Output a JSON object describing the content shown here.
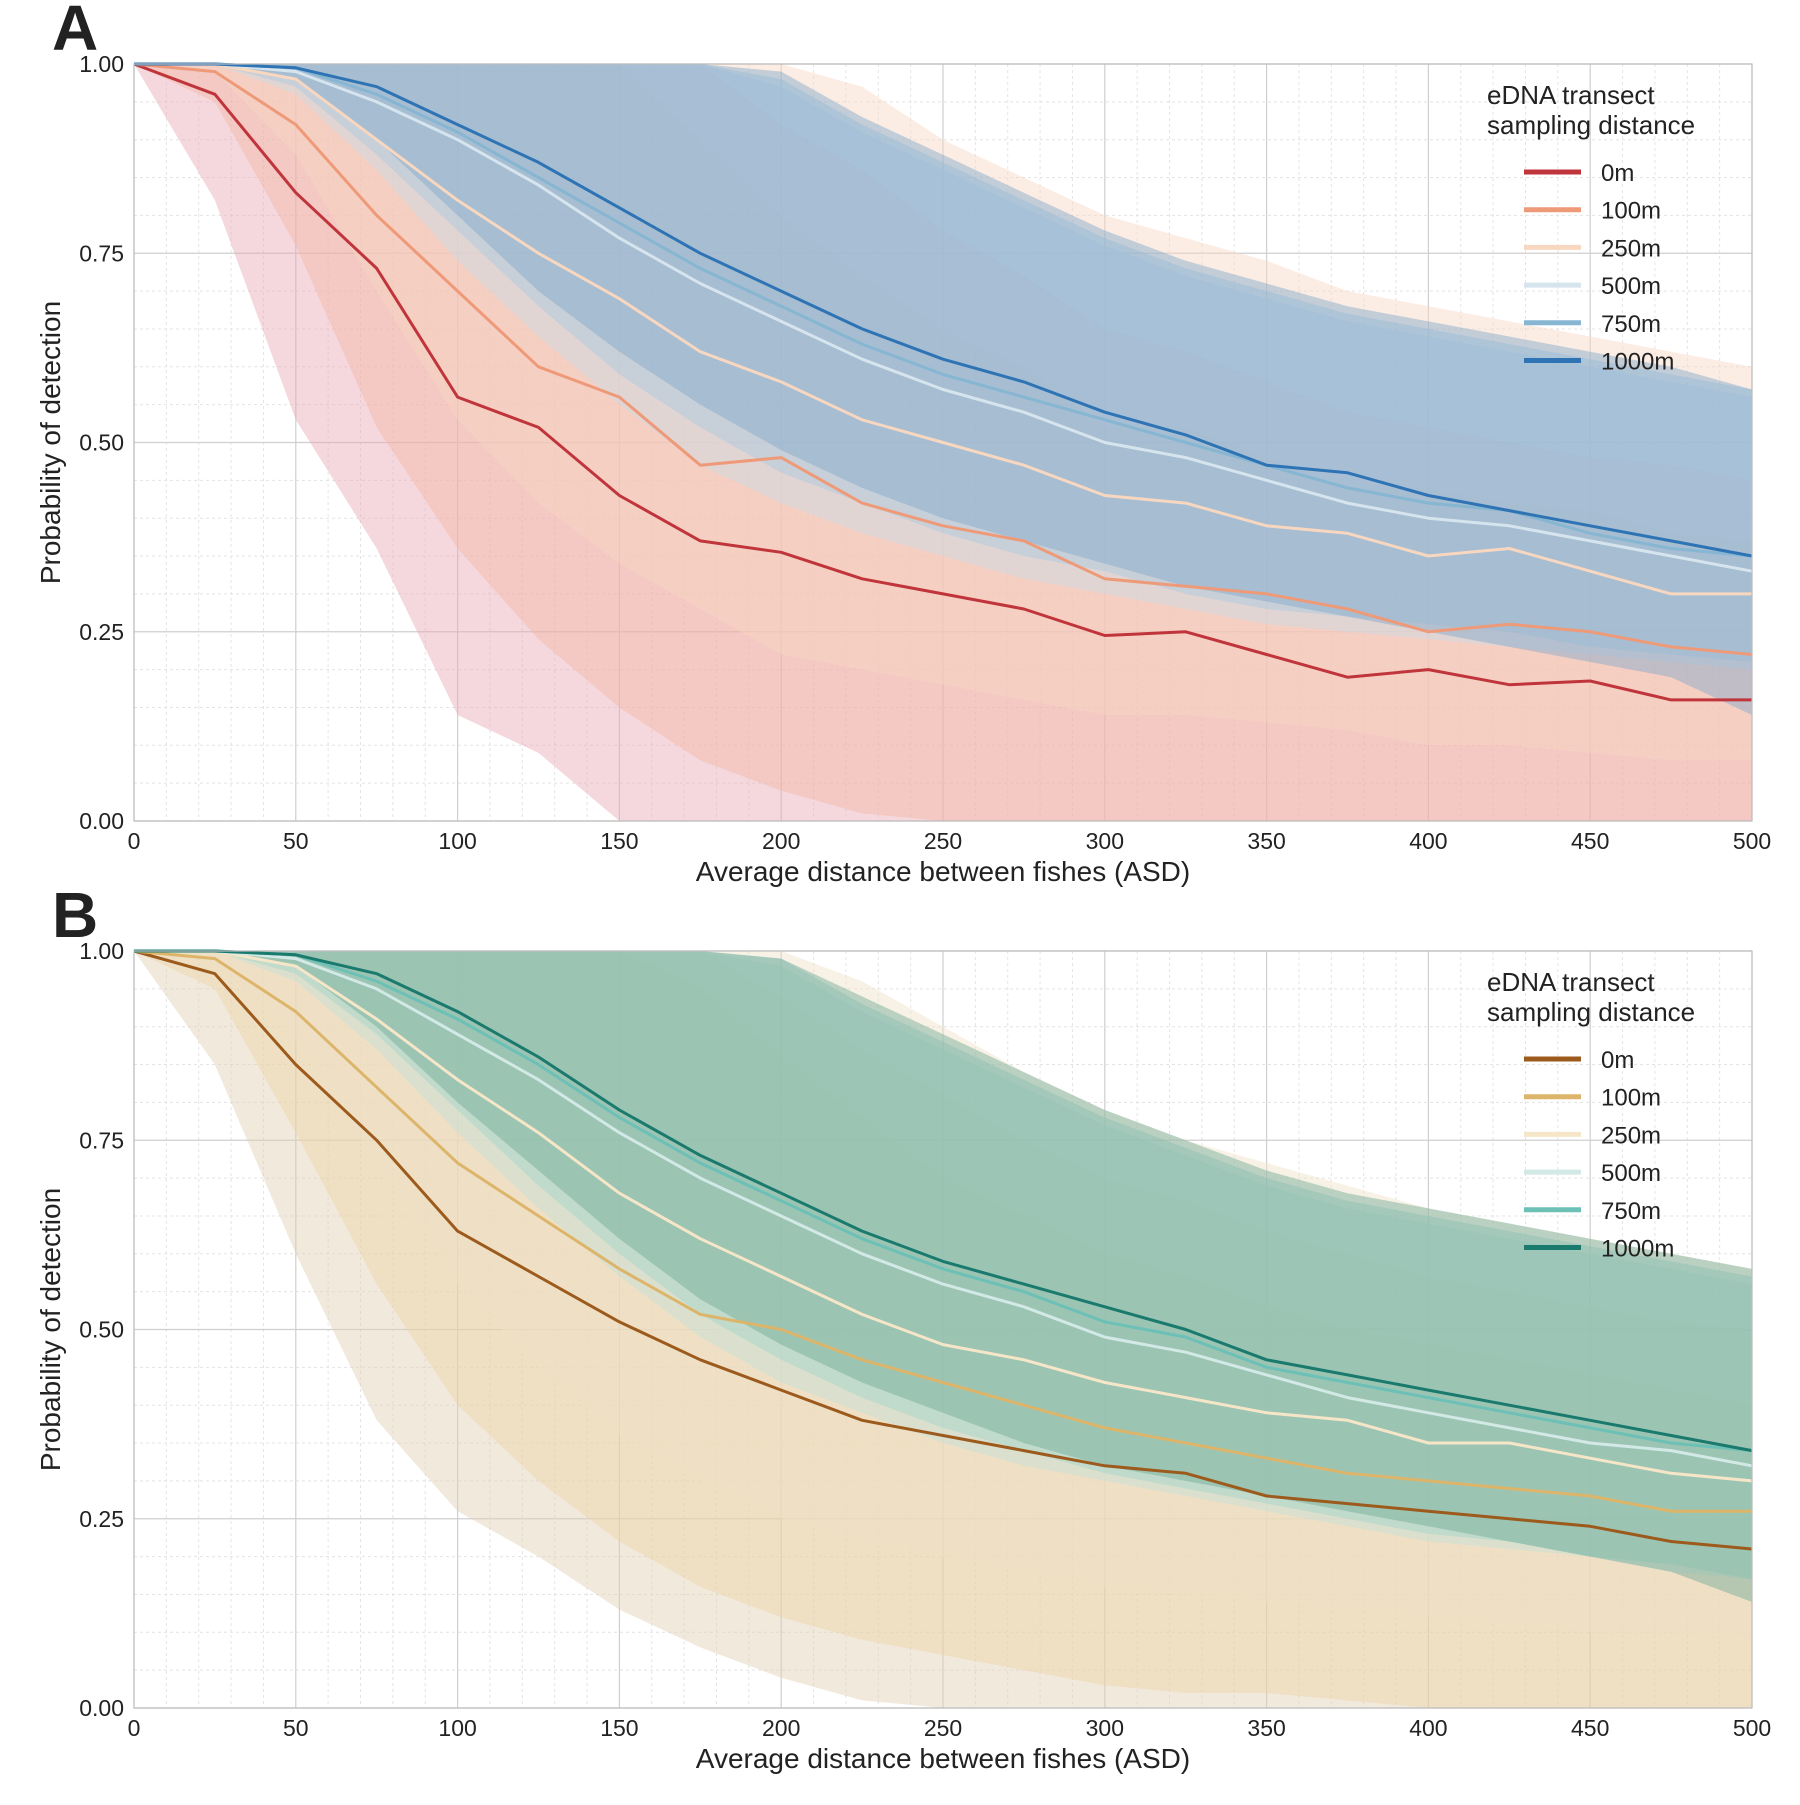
{
  "chart_data": [
    {
      "panel_label": "A",
      "type": "line",
      "xlabel": "Average distance between fishes (ASD)",
      "ylabel": "Probability of detection",
      "xlim": [
        0,
        500
      ],
      "ylim": [
        0,
        1
      ],
      "xticks": [
        "0",
        "50",
        "100",
        "150",
        "200",
        "250",
        "300",
        "350",
        "400",
        "450",
        "500"
      ],
      "yticks": [
        "0.00",
        "0.25",
        "0.50",
        "0.75",
        "1.00"
      ],
      "grid": true,
      "legend_placement": "top-right",
      "legend_title": [
        "eDNA transect",
        "sampling distance"
      ],
      "x": [
        0,
        25,
        50,
        75,
        100,
        125,
        150,
        175,
        200,
        225,
        250,
        275,
        300,
        325,
        350,
        375,
        400,
        425,
        450,
        475,
        500
      ],
      "series": [
        {
          "name": "0m",
          "color": "#c0353b",
          "band_color": "#e8a8b4",
          "values": [
            1.0,
            0.96,
            0.83,
            0.73,
            0.56,
            0.52,
            0.43,
            0.37,
            0.355,
            0.32,
            0.3,
            0.28,
            0.245,
            0.25,
            0.22,
            0.19,
            0.2,
            0.18,
            0.185,
            0.16,
            0.16
          ],
          "lower": [
            1.0,
            0.82,
            0.53,
            0.36,
            0.14,
            0.09,
            0.0,
            0.0,
            0.0,
            0.0,
            0.0,
            0.0,
            0.0,
            0.0,
            0.0,
            0.0,
            0.0,
            0.0,
            0.0,
            0.0,
            0.0
          ],
          "upper": [
            1.0,
            1.0,
            1.0,
            1.0,
            1.0,
            1.0,
            1.0,
            0.9,
            0.8,
            0.72,
            0.65,
            0.6,
            0.52,
            0.52,
            0.48,
            0.44,
            0.44,
            0.42,
            0.41,
            0.38,
            0.37
          ]
        },
        {
          "name": "100m",
          "color": "#ee9a78",
          "band_color": "#f3b6a3",
          "values": [
            1.0,
            0.99,
            0.92,
            0.8,
            0.7,
            0.6,
            0.56,
            0.47,
            0.48,
            0.42,
            0.39,
            0.37,
            0.32,
            0.31,
            0.3,
            0.28,
            0.25,
            0.26,
            0.25,
            0.23,
            0.22
          ],
          "lower": [
            1.0,
            0.95,
            0.76,
            0.52,
            0.36,
            0.24,
            0.15,
            0.08,
            0.04,
            0.01,
            0.0,
            0.0,
            0.0,
            0.0,
            0.0,
            0.0,
            0.0,
            0.0,
            0.0,
            0.0,
            0.0
          ],
          "upper": [
            1.0,
            1.0,
            1.0,
            1.0,
            1.0,
            1.0,
            1.0,
            1.0,
            0.92,
            0.86,
            0.78,
            0.72,
            0.65,
            0.62,
            0.58,
            0.54,
            0.52,
            0.5,
            0.48,
            0.47,
            0.45
          ]
        },
        {
          "name": "250m",
          "color": "#f8d7c0",
          "band_color": "#f8d8c4",
          "values": [
            1.0,
            1.0,
            0.98,
            0.9,
            0.82,
            0.75,
            0.69,
            0.62,
            0.58,
            0.53,
            0.5,
            0.47,
            0.43,
            0.42,
            0.39,
            0.38,
            0.35,
            0.36,
            0.33,
            0.3,
            0.3
          ],
          "lower": [
            1.0,
            0.99,
            0.88,
            0.7,
            0.53,
            0.42,
            0.34,
            0.28,
            0.22,
            0.2,
            0.18,
            0.16,
            0.14,
            0.14,
            0.13,
            0.12,
            0.1,
            0.1,
            0.09,
            0.08,
            0.08
          ],
          "upper": [
            1.0,
            1.0,
            1.0,
            1.0,
            1.0,
            1.0,
            1.0,
            1.0,
            1.0,
            0.97,
            0.9,
            0.85,
            0.8,
            0.77,
            0.74,
            0.7,
            0.68,
            0.66,
            0.64,
            0.62,
            0.6
          ]
        },
        {
          "name": "500m",
          "color": "#d6e4ee",
          "band_color": "#c8dbe9",
          "values": [
            1.0,
            1.0,
            0.99,
            0.95,
            0.9,
            0.84,
            0.77,
            0.71,
            0.66,
            0.61,
            0.57,
            0.54,
            0.5,
            0.48,
            0.45,
            0.42,
            0.4,
            0.39,
            0.37,
            0.35,
            0.33
          ],
          "lower": [
            1.0,
            1.0,
            0.96,
            0.86,
            0.74,
            0.64,
            0.55,
            0.47,
            0.42,
            0.38,
            0.35,
            0.32,
            0.3,
            0.28,
            0.26,
            0.25,
            0.24,
            0.23,
            0.22,
            0.21,
            0.2
          ],
          "upper": [
            1.0,
            1.0,
            1.0,
            1.0,
            1.0,
            1.0,
            1.0,
            1.0,
            0.97,
            0.91,
            0.86,
            0.81,
            0.76,
            0.72,
            0.69,
            0.66,
            0.64,
            0.62,
            0.6,
            0.58,
            0.56
          ]
        },
        {
          "name": "750m",
          "color": "#86b6d2",
          "band_color": "#a9c8df",
          "values": [
            1.0,
            1.0,
            0.995,
            0.96,
            0.91,
            0.85,
            0.79,
            0.73,
            0.68,
            0.63,
            0.59,
            0.56,
            0.53,
            0.5,
            0.47,
            0.44,
            0.42,
            0.41,
            0.38,
            0.36,
            0.35
          ],
          "lower": [
            1.0,
            1.0,
            0.97,
            0.88,
            0.78,
            0.68,
            0.59,
            0.52,
            0.46,
            0.42,
            0.38,
            0.35,
            0.33,
            0.3,
            0.28,
            0.27,
            0.26,
            0.25,
            0.23,
            0.22,
            0.21
          ],
          "upper": [
            1.0,
            1.0,
            1.0,
            1.0,
            1.0,
            1.0,
            1.0,
            1.0,
            0.98,
            0.92,
            0.87,
            0.82,
            0.77,
            0.73,
            0.7,
            0.67,
            0.65,
            0.63,
            0.61,
            0.59,
            0.57
          ]
        },
        {
          "name": "1000m",
          "color": "#2e74b5",
          "band_color": "#7ea6c9",
          "values": [
            1.0,
            1.0,
            0.995,
            0.97,
            0.92,
            0.87,
            0.81,
            0.75,
            0.7,
            0.65,
            0.61,
            0.58,
            0.54,
            0.51,
            0.47,
            0.46,
            0.43,
            0.41,
            0.39,
            0.37,
            0.35
          ],
          "lower": [
            1.0,
            1.0,
            0.98,
            0.9,
            0.8,
            0.7,
            0.62,
            0.55,
            0.49,
            0.44,
            0.4,
            0.37,
            0.34,
            0.31,
            0.29,
            0.27,
            0.25,
            0.23,
            0.21,
            0.19,
            0.14
          ],
          "upper": [
            1.0,
            1.0,
            1.0,
            1.0,
            1.0,
            1.0,
            1.0,
            1.0,
            0.99,
            0.93,
            0.88,
            0.83,
            0.78,
            0.74,
            0.71,
            0.68,
            0.66,
            0.64,
            0.62,
            0.6,
            0.57
          ]
        }
      ]
    },
    {
      "panel_label": "B",
      "type": "line",
      "xlabel": "Average distance between fishes (ASD)",
      "ylabel": "Probability of detection",
      "xlim": [
        0,
        500
      ],
      "ylim": [
        0,
        1
      ],
      "xticks": [
        "0",
        "50",
        "100",
        "150",
        "200",
        "250",
        "300",
        "350",
        "400",
        "450",
        "500"
      ],
      "yticks": [
        "0.00",
        "0.25",
        "0.50",
        "0.75",
        "1.00"
      ],
      "grid": true,
      "legend_placement": "top-right",
      "legend_title": [
        "eDNA transect",
        "sampling distance"
      ],
      "x": [
        0,
        25,
        50,
        75,
        100,
        125,
        150,
        175,
        200,
        225,
        250,
        275,
        300,
        325,
        350,
        375,
        400,
        425,
        450,
        475,
        500
      ],
      "series": [
        {
          "name": "0m",
          "color": "#9c5b1c",
          "band_color": "#e3cfb3",
          "values": [
            1.0,
            0.97,
            0.85,
            0.75,
            0.63,
            0.57,
            0.51,
            0.46,
            0.42,
            0.38,
            0.36,
            0.34,
            0.32,
            0.31,
            0.28,
            0.27,
            0.26,
            0.25,
            0.24,
            0.22,
            0.21
          ],
          "lower": [
            1.0,
            0.85,
            0.6,
            0.38,
            0.26,
            0.2,
            0.13,
            0.08,
            0.04,
            0.01,
            0.0,
            0.0,
            0.0,
            0.0,
            0.0,
            0.0,
            0.0,
            0.0,
            0.0,
            0.0,
            0.0
          ],
          "upper": [
            1.0,
            1.0,
            1.0,
            1.0,
            1.0,
            1.0,
            1.0,
            0.95,
            0.86,
            0.78,
            0.7,
            0.65,
            0.6,
            0.57,
            0.53,
            0.5,
            0.48,
            0.46,
            0.44,
            0.42,
            0.4
          ]
        },
        {
          "name": "100m",
          "color": "#ddb56a",
          "band_color": "#ecd3a4",
          "values": [
            1.0,
            0.99,
            0.92,
            0.82,
            0.72,
            0.65,
            0.58,
            0.52,
            0.5,
            0.46,
            0.43,
            0.4,
            0.37,
            0.35,
            0.33,
            0.31,
            0.3,
            0.29,
            0.28,
            0.26,
            0.26
          ],
          "lower": [
            1.0,
            0.95,
            0.76,
            0.56,
            0.4,
            0.3,
            0.22,
            0.16,
            0.12,
            0.09,
            0.07,
            0.05,
            0.03,
            0.02,
            0.02,
            0.01,
            0.0,
            0.0,
            0.0,
            0.0,
            0.0
          ],
          "upper": [
            1.0,
            1.0,
            1.0,
            1.0,
            1.0,
            1.0,
            1.0,
            1.0,
            0.94,
            0.87,
            0.81,
            0.75,
            0.7,
            0.67,
            0.63,
            0.6,
            0.57,
            0.55,
            0.53,
            0.51,
            0.5
          ]
        },
        {
          "name": "250m",
          "color": "#f6e6c8",
          "band_color": "#efe2c8",
          "values": [
            1.0,
            1.0,
            0.98,
            0.91,
            0.83,
            0.76,
            0.68,
            0.62,
            0.57,
            0.52,
            0.48,
            0.46,
            0.43,
            0.41,
            0.39,
            0.38,
            0.35,
            0.35,
            0.33,
            0.31,
            0.3
          ],
          "lower": [
            1.0,
            0.99,
            0.88,
            0.72,
            0.56,
            0.45,
            0.36,
            0.3,
            0.25,
            0.22,
            0.2,
            0.18,
            0.16,
            0.15,
            0.14,
            0.13,
            0.12,
            0.11,
            0.1,
            0.1,
            0.09
          ],
          "upper": [
            1.0,
            1.0,
            1.0,
            1.0,
            1.0,
            1.0,
            1.0,
            1.0,
            1.0,
            0.96,
            0.9,
            0.84,
            0.79,
            0.75,
            0.72,
            0.69,
            0.66,
            0.64,
            0.62,
            0.6,
            0.58
          ]
        },
        {
          "name": "500m",
          "color": "#d2e9e6",
          "band_color": "#c4e0da",
          "values": [
            1.0,
            1.0,
            0.99,
            0.95,
            0.89,
            0.83,
            0.76,
            0.7,
            0.65,
            0.6,
            0.56,
            0.53,
            0.49,
            0.47,
            0.44,
            0.41,
            0.39,
            0.37,
            0.35,
            0.34,
            0.32
          ],
          "lower": [
            1.0,
            1.0,
            0.96,
            0.87,
            0.76,
            0.66,
            0.57,
            0.49,
            0.43,
            0.39,
            0.35,
            0.32,
            0.3,
            0.28,
            0.26,
            0.24,
            0.22,
            0.21,
            0.2,
            0.18,
            0.17
          ],
          "upper": [
            1.0,
            1.0,
            1.0,
            1.0,
            1.0,
            1.0,
            1.0,
            1.0,
            0.98,
            0.92,
            0.87,
            0.82,
            0.77,
            0.73,
            0.69,
            0.66,
            0.64,
            0.62,
            0.6,
            0.58,
            0.56
          ]
        },
        {
          "name": "750m",
          "color": "#6cc0b6",
          "band_color": "#9fd2c8",
          "values": [
            1.0,
            1.0,
            0.995,
            0.96,
            0.91,
            0.85,
            0.78,
            0.72,
            0.67,
            0.62,
            0.58,
            0.55,
            0.51,
            0.49,
            0.45,
            0.43,
            0.41,
            0.39,
            0.37,
            0.35,
            0.34
          ],
          "lower": [
            1.0,
            1.0,
            0.97,
            0.89,
            0.79,
            0.69,
            0.6,
            0.52,
            0.46,
            0.41,
            0.37,
            0.34,
            0.31,
            0.29,
            0.27,
            0.25,
            0.23,
            0.22,
            0.2,
            0.19,
            0.17
          ],
          "upper": [
            1.0,
            1.0,
            1.0,
            1.0,
            1.0,
            1.0,
            1.0,
            1.0,
            0.99,
            0.93,
            0.88,
            0.83,
            0.78,
            0.74,
            0.7,
            0.67,
            0.65,
            0.63,
            0.61,
            0.59,
            0.57
          ]
        },
        {
          "name": "1000m",
          "color": "#1a7a6e",
          "band_color": "#6ea896",
          "values": [
            1.0,
            1.0,
            0.995,
            0.97,
            0.92,
            0.86,
            0.79,
            0.73,
            0.68,
            0.63,
            0.59,
            0.56,
            0.53,
            0.5,
            0.46,
            0.44,
            0.42,
            0.4,
            0.38,
            0.36,
            0.34
          ],
          "lower": [
            1.0,
            1.0,
            0.98,
            0.9,
            0.8,
            0.71,
            0.62,
            0.54,
            0.48,
            0.43,
            0.39,
            0.35,
            0.32,
            0.3,
            0.28,
            0.26,
            0.24,
            0.22,
            0.2,
            0.18,
            0.14
          ],
          "upper": [
            1.0,
            1.0,
            1.0,
            1.0,
            1.0,
            1.0,
            1.0,
            1.0,
            0.99,
            0.94,
            0.89,
            0.84,
            0.79,
            0.75,
            0.71,
            0.68,
            0.66,
            0.64,
            0.62,
            0.6,
            0.58
          ]
        }
      ]
    }
  ]
}
